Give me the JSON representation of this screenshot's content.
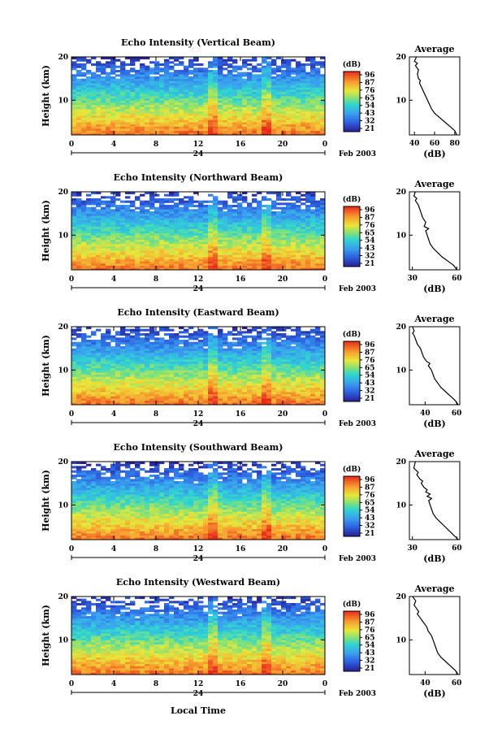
{
  "figure": {
    "xlabel": "Local Time",
    "date_label": "Feb 2003",
    "day_label": "24"
  },
  "chart_data": [
    {
      "type": "heatmap",
      "title": "Echo Intensity (Vertical Beam)",
      "ylabel": "Height (km)",
      "x_ticks": [
        "0",
        "4",
        "8",
        "12",
        "16",
        "20",
        "0"
      ],
      "y_ticks": [
        "10",
        "20"
      ],
      "xlim": [
        0,
        24
      ],
      "ylim": [
        2,
        20
      ],
      "colorbar": {
        "unit": "(dB)",
        "ticks": [
          "96",
          "87",
          "76",
          "65",
          "54",
          "43",
          "32",
          "21"
        ],
        "range": [
          21,
          96
        ]
      },
      "profile": {
        "title": "Average",
        "xlabel": "(dB)",
        "x_ticks": [
          "40",
          "60",
          "80"
        ],
        "y_ticks": [
          "10",
          "20"
        ],
        "xlim": [
          35,
          85
        ],
        "ylim": [
          2,
          20
        ],
        "x": [
          82,
          80,
          75,
          70,
          65,
          60,
          57,
          55,
          53,
          51,
          50,
          49,
          48,
          47,
          46,
          45,
          46,
          44,
          43,
          44,
          41,
          43,
          40,
          42
        ],
        "y": [
          2,
          3,
          4,
          5,
          6,
          7,
          8,
          9,
          10,
          11,
          11.5,
          12,
          12.5,
          13,
          13.5,
          14,
          14.5,
          15,
          16,
          17,
          18,
          18.5,
          19,
          20
        ]
      }
    },
    {
      "type": "heatmap",
      "title": "Echo Intensity (Northward Beam)",
      "ylabel": "Height (km)",
      "x_ticks": [
        "0",
        "4",
        "8",
        "12",
        "16",
        "20",
        "0"
      ],
      "y_ticks": [
        "10",
        "20"
      ],
      "xlim": [
        0,
        24
      ],
      "ylim": [
        2,
        20
      ],
      "colorbar": {
        "unit": "(dB)",
        "ticks": [
          "96",
          "87",
          "76",
          "65",
          "54",
          "43",
          "32",
          "21"
        ],
        "range": [
          21,
          96
        ]
      },
      "profile": {
        "title": "Average",
        "xlabel": "(dB)",
        "x_ticks": [
          "30",
          "60"
        ],
        "y_ticks": [
          "10",
          "20"
        ],
        "xlim": [
          28,
          62
        ],
        "ylim": [
          2,
          20
        ],
        "x": [
          60,
          58,
          54,
          50,
          47,
          44,
          42,
          41,
          40,
          39,
          41,
          38,
          39,
          37,
          36,
          35,
          34,
          33,
          32,
          33,
          31,
          32
        ],
        "y": [
          2,
          3,
          4,
          5,
          6,
          7,
          8,
          9,
          10,
          11,
          11.5,
          12,
          13,
          14,
          15,
          16,
          17,
          17.5,
          18,
          18.5,
          19,
          20
        ]
      }
    },
    {
      "type": "heatmap",
      "title": "Echo Intensity (Eastward Beam)",
      "ylabel": "Height (km)",
      "x_ticks": [
        "0",
        "4",
        "8",
        "12",
        "16",
        "20",
        "0"
      ],
      "y_ticks": [
        "10",
        "20"
      ],
      "xlim": [
        0,
        24
      ],
      "ylim": [
        2,
        20
      ],
      "colorbar": {
        "unit": "(dB)",
        "ticks": [
          "96",
          "87",
          "76",
          "65",
          "54",
          "43",
          "32",
          "21"
        ],
        "range": [
          21,
          96
        ]
      },
      "profile": {
        "title": "Average",
        "xlabel": "(dB)",
        "x_ticks": [
          "40",
          "60"
        ],
        "y_ticks": [
          "10",
          "20"
        ],
        "xlim": [
          30,
          62
        ],
        "ylim": [
          2,
          20
        ],
        "x": [
          61,
          59,
          56,
          53,
          50,
          48,
          46,
          45,
          44,
          42,
          43,
          41,
          39,
          38,
          37,
          35,
          34,
          33,
          32,
          33,
          32
        ],
        "y": [
          2,
          3,
          4,
          5,
          6,
          7,
          8,
          9,
          10,
          11,
          11.5,
          12,
          13,
          14,
          15,
          16,
          17,
          18,
          18.5,
          19,
          20
        ]
      }
    },
    {
      "type": "heatmap",
      "title": "Echo Intensity (Southward Beam)",
      "ylabel": "Height (km)",
      "x_ticks": [
        "0",
        "4",
        "8",
        "12",
        "16",
        "20",
        "0"
      ],
      "y_ticks": [
        "10",
        "20"
      ],
      "xlim": [
        0,
        24
      ],
      "ylim": [
        2,
        20
      ],
      "colorbar": {
        "unit": "(dB)",
        "ticks": [
          "96",
          "87",
          "76",
          "65",
          "54",
          "43",
          "32",
          "21"
        ],
        "range": [
          21,
          96
        ]
      },
      "profile": {
        "title": "Average",
        "xlabel": "(dB)",
        "x_ticks": [
          "30",
          "60"
        ],
        "y_ticks": [
          "10",
          "20"
        ],
        "xlim": [
          28,
          62
        ],
        "ylim": [
          2,
          20
        ],
        "x": [
          61,
          58,
          55,
          52,
          49,
          46,
          44,
          43,
          42,
          41,
          43,
          40,
          42,
          39,
          40,
          38,
          36,
          37,
          35,
          33,
          34,
          31,
          32
        ],
        "y": [
          2,
          3,
          4,
          5,
          6,
          7,
          8,
          9,
          10,
          11,
          11.5,
          12,
          12.5,
          13,
          13.5,
          14,
          15,
          15.5,
          16,
          17,
          17.5,
          18.5,
          20
        ]
      }
    },
    {
      "type": "heatmap",
      "title": "Echo Intensity (Westward Beam)",
      "ylabel": "Height (km)",
      "x_ticks": [
        "0",
        "4",
        "8",
        "12",
        "16",
        "20",
        "0"
      ],
      "y_ticks": [
        "10",
        "20"
      ],
      "xlim": [
        0,
        24
      ],
      "ylim": [
        2,
        20
      ],
      "colorbar": {
        "unit": "(dB)",
        "ticks": [
          "96",
          "87",
          "76",
          "65",
          "54",
          "43",
          "32",
          "21"
        ],
        "range": [
          21,
          96
        ]
      },
      "profile": {
        "title": "Average",
        "xlabel": "(dB)",
        "x_ticks": [
          "40",
          "60"
        ],
        "y_ticks": [
          "10",
          "20"
        ],
        "xlim": [
          30,
          62
        ],
        "ylim": [
          2,
          20
        ],
        "x": [
          61,
          59,
          56,
          53,
          50,
          48,
          47,
          46,
          45,
          44,
          42,
          41,
          40,
          39,
          37,
          35,
          36,
          34,
          33,
          34,
          32
        ],
        "y": [
          2,
          3,
          4,
          5,
          6,
          7,
          8,
          9,
          10,
          11,
          12,
          13,
          13.5,
          14,
          15,
          16,
          16.5,
          17.5,
          18,
          19,
          20
        ]
      }
    }
  ]
}
